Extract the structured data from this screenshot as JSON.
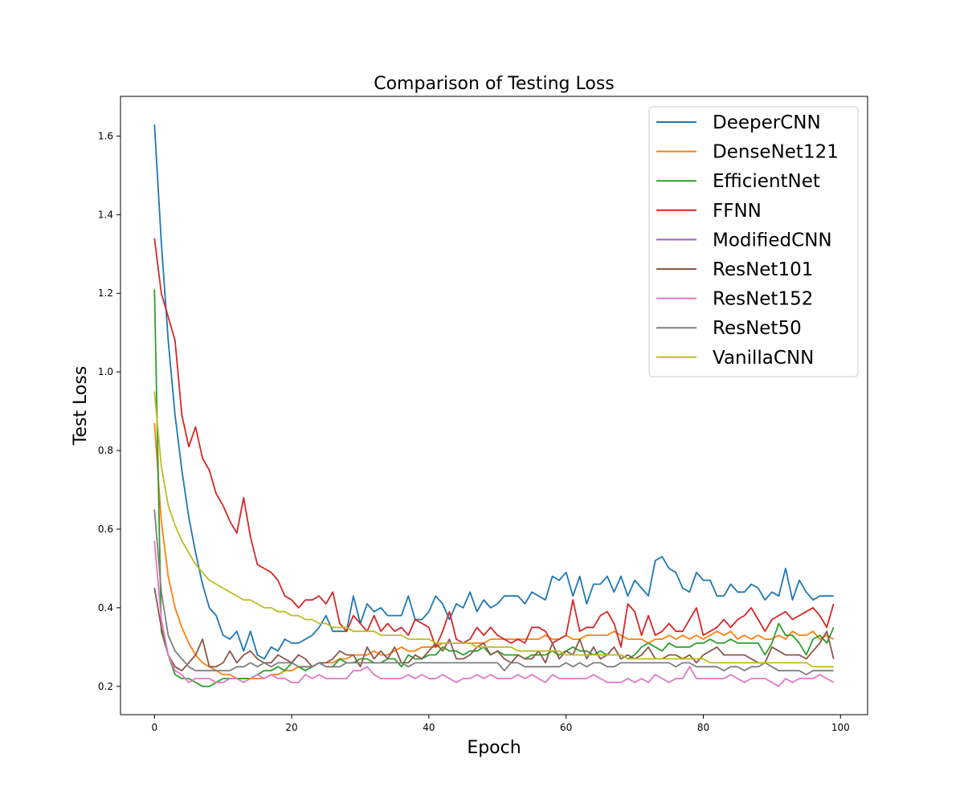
{
  "chart_data": {
    "type": "line",
    "title": "Comparison of Testing Loss",
    "xlabel": "Epoch",
    "ylabel": "Test Loss",
    "xlim": [
      -4.95,
      103.95
    ],
    "ylim": [
      0.128,
      1.701
    ],
    "xticks": [
      0,
      20,
      40,
      60,
      80,
      100
    ],
    "yticks": [
      0.2,
      0.4,
      0.6,
      0.8,
      1.0,
      1.2,
      1.4,
      1.6
    ],
    "xtick_labels": [
      "0",
      "20",
      "40",
      "60",
      "80",
      "100"
    ],
    "ytick_labels": [
      "0.2",
      "0.4",
      "0.6",
      "0.8",
      "1.0",
      "1.2",
      "1.4",
      "1.6"
    ],
    "grid": false,
    "legend_position": "top-right",
    "series": [
      {
        "name": "DeeperCNN",
        "color": "#1f77b4",
        "values": [
          1.63,
          1.33,
          1.08,
          0.89,
          0.75,
          0.63,
          0.54,
          0.46,
          0.4,
          0.38,
          0.33,
          0.32,
          0.34,
          0.29,
          0.34,
          0.28,
          0.27,
          0.3,
          0.29,
          0.32,
          0.31,
          0.31,
          0.32,
          0.33,
          0.35,
          0.38,
          0.34,
          0.34,
          0.34,
          0.43,
          0.36,
          0.41,
          0.39,
          0.4,
          0.38,
          0.38,
          0.38,
          0.43,
          0.37,
          0.37,
          0.39,
          0.43,
          0.41,
          0.37,
          0.41,
          0.4,
          0.44,
          0.39,
          0.42,
          0.4,
          0.41,
          0.43,
          0.43,
          0.43,
          0.41,
          0.44,
          0.43,
          0.42,
          0.48,
          0.47,
          0.49,
          0.43,
          0.48,
          0.41,
          0.46,
          0.46,
          0.48,
          0.44,
          0.48,
          0.43,
          0.47,
          0.45,
          0.43,
          0.52,
          0.53,
          0.5,
          0.49,
          0.45,
          0.44,
          0.49,
          0.47,
          0.47,
          0.43,
          0.43,
          0.46,
          0.44,
          0.44,
          0.46,
          0.45,
          0.42,
          0.44,
          0.43,
          0.5,
          0.42,
          0.47,
          0.44,
          0.42,
          0.43,
          0.43,
          0.43
        ]
      },
      {
        "name": "DenseNet121",
        "color": "#ff7f0e",
        "values": [
          0.87,
          0.62,
          0.48,
          0.4,
          0.35,
          0.31,
          0.28,
          0.26,
          0.25,
          0.24,
          0.23,
          0.23,
          0.22,
          0.22,
          0.22,
          0.22,
          0.22,
          0.23,
          0.23,
          0.24,
          0.24,
          0.25,
          0.25,
          0.25,
          0.26,
          0.26,
          0.26,
          0.27,
          0.27,
          0.28,
          0.28,
          0.28,
          0.29,
          0.28,
          0.28,
          0.29,
          0.3,
          0.29,
          0.29,
          0.3,
          0.3,
          0.3,
          0.31,
          0.31,
          0.31,
          0.31,
          0.31,
          0.31,
          0.31,
          0.32,
          0.32,
          0.32,
          0.32,
          0.32,
          0.32,
          0.32,
          0.32,
          0.33,
          0.32,
          0.32,
          0.33,
          0.32,
          0.32,
          0.33,
          0.33,
          0.33,
          0.33,
          0.34,
          0.33,
          0.32,
          0.32,
          0.32,
          0.31,
          0.32,
          0.32,
          0.33,
          0.32,
          0.33,
          0.32,
          0.33,
          0.32,
          0.33,
          0.34,
          0.33,
          0.34,
          0.32,
          0.33,
          0.32,
          0.33,
          0.32,
          0.32,
          0.33,
          0.32,
          0.34,
          0.33,
          0.33,
          0.34,
          0.32,
          0.33,
          0.32
        ]
      },
      {
        "name": "EfficientNet",
        "color": "#2ca02c",
        "values": [
          1.21,
          0.34,
          0.28,
          0.23,
          0.22,
          0.22,
          0.21,
          0.2,
          0.2,
          0.21,
          0.22,
          0.22,
          0.22,
          0.22,
          0.22,
          0.23,
          0.24,
          0.24,
          0.25,
          0.24,
          0.26,
          0.25,
          0.24,
          0.25,
          0.26,
          0.25,
          0.25,
          0.27,
          0.26,
          0.26,
          0.27,
          0.27,
          0.26,
          0.26,
          0.27,
          0.27,
          0.25,
          0.28,
          0.27,
          0.27,
          0.28,
          0.28,
          0.3,
          0.29,
          0.29,
          0.28,
          0.29,
          0.29,
          0.3,
          0.28,
          0.29,
          0.28,
          0.28,
          0.28,
          0.27,
          0.28,
          0.28,
          0.28,
          0.29,
          0.28,
          0.29,
          0.3,
          0.29,
          0.29,
          0.28,
          0.29,
          0.28,
          0.28,
          0.28,
          0.27,
          0.28,
          0.3,
          0.31,
          0.3,
          0.29,
          0.31,
          0.3,
          0.3,
          0.3,
          0.31,
          0.31,
          0.32,
          0.31,
          0.31,
          0.32,
          0.31,
          0.31,
          0.31,
          0.31,
          0.28,
          0.31,
          0.36,
          0.33,
          0.33,
          0.31,
          0.28,
          0.32,
          0.33,
          0.31,
          0.35
        ]
      },
      {
        "name": "FFNN",
        "color": "#d62728",
        "values": [
          1.34,
          1.2,
          1.14,
          1.08,
          0.89,
          0.81,
          0.86,
          0.78,
          0.75,
          0.69,
          0.66,
          0.62,
          0.59,
          0.68,
          0.58,
          0.51,
          0.5,
          0.49,
          0.47,
          0.43,
          0.42,
          0.4,
          0.42,
          0.42,
          0.43,
          0.41,
          0.44,
          0.36,
          0.34,
          0.38,
          0.36,
          0.34,
          0.38,
          0.34,
          0.36,
          0.34,
          0.35,
          0.33,
          0.37,
          0.36,
          0.35,
          0.3,
          0.34,
          0.39,
          0.32,
          0.31,
          0.32,
          0.35,
          0.33,
          0.35,
          0.33,
          0.32,
          0.31,
          0.32,
          0.31,
          0.35,
          0.35,
          0.34,
          0.31,
          0.32,
          0.33,
          0.42,
          0.34,
          0.35,
          0.35,
          0.38,
          0.39,
          0.36,
          0.3,
          0.41,
          0.39,
          0.33,
          0.38,
          0.33,
          0.34,
          0.36,
          0.34,
          0.34,
          0.37,
          0.4,
          0.33,
          0.34,
          0.35,
          0.37,
          0.35,
          0.37,
          0.38,
          0.4,
          0.37,
          0.34,
          0.37,
          0.38,
          0.39,
          0.37,
          0.38,
          0.39,
          0.4,
          0.38,
          0.35,
          0.41
        ]
      },
      {
        "name": "ModifiedCNN",
        "color": "#9467bd",
        "values": []
      },
      {
        "name": "ResNet101",
        "color": "#8c564b",
        "values": [
          0.45,
          0.35,
          0.28,
          0.25,
          0.24,
          0.26,
          0.28,
          0.32,
          0.25,
          0.25,
          0.26,
          0.29,
          0.26,
          0.28,
          0.29,
          0.27,
          0.26,
          0.26,
          0.28,
          0.27,
          0.26,
          0.28,
          0.27,
          0.25,
          0.26,
          0.26,
          0.27,
          0.29,
          0.28,
          0.28,
          0.25,
          0.3,
          0.27,
          0.29,
          0.27,
          0.3,
          0.26,
          0.26,
          0.28,
          0.27,
          0.29,
          0.31,
          0.29,
          0.32,
          0.27,
          0.27,
          0.28,
          0.3,
          0.31,
          0.28,
          0.29,
          0.27,
          0.26,
          0.28,
          0.27,
          0.27,
          0.29,
          0.26,
          0.31,
          0.27,
          0.29,
          0.28,
          0.32,
          0.27,
          0.3,
          0.27,
          0.28,
          0.3,
          0.27,
          0.28,
          0.27,
          0.28,
          0.3,
          0.27,
          0.27,
          0.28,
          0.28,
          0.27,
          0.28,
          0.26,
          0.28,
          0.29,
          0.3,
          0.28,
          0.28,
          0.28,
          0.28,
          0.27,
          0.26,
          0.26,
          0.3,
          0.29,
          0.28,
          0.28,
          0.28,
          0.27,
          0.29,
          0.31,
          0.34,
          0.27
        ]
      },
      {
        "name": "ResNet152",
        "color": "#e377c2",
        "values": [
          0.57,
          0.37,
          0.28,
          0.24,
          0.23,
          0.21,
          0.22,
          0.22,
          0.22,
          0.21,
          0.21,
          0.22,
          0.22,
          0.21,
          0.22,
          0.23,
          0.22,
          0.23,
          0.22,
          0.22,
          0.21,
          0.21,
          0.23,
          0.22,
          0.23,
          0.22,
          0.22,
          0.22,
          0.22,
          0.24,
          0.24,
          0.25,
          0.23,
          0.22,
          0.22,
          0.22,
          0.22,
          0.23,
          0.22,
          0.23,
          0.22,
          0.22,
          0.23,
          0.22,
          0.21,
          0.22,
          0.22,
          0.23,
          0.22,
          0.23,
          0.22,
          0.22,
          0.22,
          0.23,
          0.22,
          0.23,
          0.22,
          0.21,
          0.23,
          0.22,
          0.22,
          0.22,
          0.22,
          0.22,
          0.23,
          0.22,
          0.21,
          0.21,
          0.21,
          0.22,
          0.21,
          0.22,
          0.21,
          0.23,
          0.22,
          0.21,
          0.22,
          0.22,
          0.25,
          0.22,
          0.22,
          0.22,
          0.22,
          0.22,
          0.23,
          0.22,
          0.21,
          0.22,
          0.22,
          0.22,
          0.21,
          0.2,
          0.22,
          0.21,
          0.22,
          0.22,
          0.22,
          0.23,
          0.22,
          0.21
        ]
      },
      {
        "name": "ResNet50",
        "color": "#7f7f7f",
        "values": [
          0.65,
          0.44,
          0.33,
          0.29,
          0.27,
          0.25,
          0.24,
          0.24,
          0.24,
          0.24,
          0.24,
          0.24,
          0.25,
          0.25,
          0.26,
          0.25,
          0.26,
          0.25,
          0.26,
          0.26,
          0.26,
          0.25,
          0.25,
          0.25,
          0.26,
          0.25,
          0.25,
          0.25,
          0.26,
          0.26,
          0.26,
          0.26,
          0.26,
          0.26,
          0.26,
          0.26,
          0.26,
          0.25,
          0.26,
          0.26,
          0.26,
          0.26,
          0.26,
          0.26,
          0.26,
          0.26,
          0.26,
          0.26,
          0.26,
          0.26,
          0.26,
          0.24,
          0.26,
          0.26,
          0.25,
          0.25,
          0.25,
          0.25,
          0.25,
          0.25,
          0.26,
          0.25,
          0.26,
          0.25,
          0.26,
          0.26,
          0.25,
          0.25,
          0.26,
          0.26,
          0.26,
          0.26,
          0.26,
          0.26,
          0.26,
          0.26,
          0.25,
          0.26,
          0.26,
          0.25,
          0.25,
          0.25,
          0.25,
          0.24,
          0.25,
          0.25,
          0.24,
          0.25,
          0.25,
          0.26,
          0.25,
          0.24,
          0.24,
          0.24,
          0.24,
          0.23,
          0.24,
          0.24,
          0.24,
          0.24
        ]
      },
      {
        "name": "VanillaCNN",
        "color": "#bcbd22",
        "values": [
          0.95,
          0.76,
          0.66,
          0.61,
          0.57,
          0.54,
          0.51,
          0.49,
          0.47,
          0.46,
          0.45,
          0.44,
          0.43,
          0.42,
          0.42,
          0.41,
          0.4,
          0.4,
          0.39,
          0.39,
          0.38,
          0.38,
          0.37,
          0.37,
          0.36,
          0.36,
          0.35,
          0.35,
          0.35,
          0.34,
          0.34,
          0.34,
          0.34,
          0.33,
          0.33,
          0.33,
          0.33,
          0.32,
          0.32,
          0.32,
          0.32,
          0.31,
          0.31,
          0.31,
          0.31,
          0.31,
          0.31,
          0.3,
          0.3,
          0.3,
          0.3,
          0.3,
          0.3,
          0.29,
          0.29,
          0.29,
          0.29,
          0.29,
          0.29,
          0.29,
          0.28,
          0.28,
          0.28,
          0.28,
          0.28,
          0.28,
          0.28,
          0.28,
          0.28,
          0.27,
          0.27,
          0.27,
          0.27,
          0.27,
          0.27,
          0.27,
          0.27,
          0.27,
          0.27,
          0.27,
          0.27,
          0.26,
          0.26,
          0.26,
          0.26,
          0.26,
          0.26,
          0.26,
          0.26,
          0.26,
          0.26,
          0.26,
          0.26,
          0.26,
          0.26,
          0.26,
          0.25,
          0.25,
          0.25,
          0.25
        ]
      }
    ]
  }
}
